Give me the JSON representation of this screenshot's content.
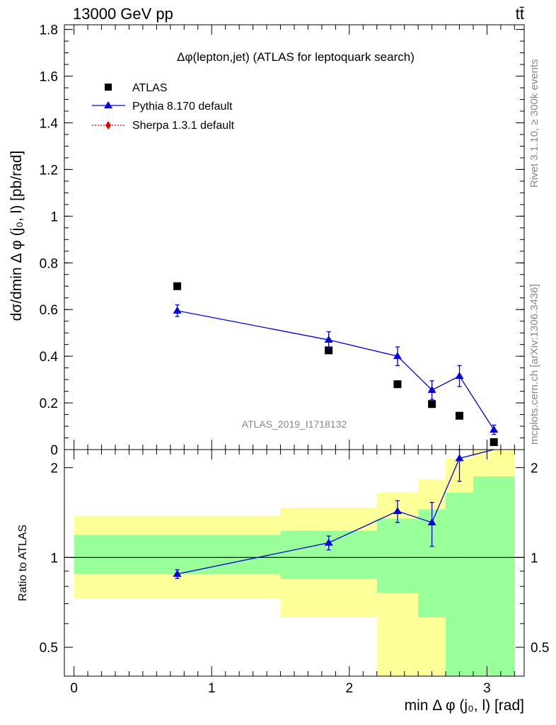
{
  "header": {
    "left": "13000 GeV pp",
    "right": "tt̄"
  },
  "side_labels": {
    "rivet": "Rivet 3.1.10, ≥ 300k events",
    "mcplots": "mcplots.cern.ch [arXiv:1306.3436]"
  },
  "analysis_tag": "ATLAS_2019_I1718132",
  "colors": {
    "atlas": "#000000",
    "pythia": "#0000dd",
    "sherpa": "#ee0000",
    "band_green": "#99ff99",
    "band_yellow": "#ffff99"
  },
  "chart_data": [
    {
      "type": "scatter",
      "panel": "main",
      "title": "Δφ(lepton,jet) (ATLAS for leptoquark search)",
      "ylabel": "dσ/dmin Δ φ (j₀, l) [pb/rad]",
      "xlim": [
        -0.07,
        3.27
      ],
      "ylim": [
        0,
        1.82
      ],
      "y_ticks": [
        "0",
        "0.2",
        "0.4",
        "0.6",
        "0.8",
        "1",
        "1.2",
        "1.4",
        "1.6",
        "1.8"
      ],
      "legend_position": "top-left",
      "series": [
        {
          "name": "ATLAS",
          "marker": "square",
          "x": [
            0.75,
            1.85,
            2.35,
            2.6,
            2.8,
            3.05
          ],
          "y": [
            0.7,
            0.425,
            0.28,
            0.195,
            0.145,
            0.032
          ]
        },
        {
          "name": "Pythia 8.170 default",
          "marker": "triangle",
          "x": [
            0.75,
            1.85,
            2.35,
            2.6,
            2.8,
            3.05
          ],
          "y": [
            0.595,
            0.47,
            0.4,
            0.255,
            0.315,
            0.085
          ],
          "err": [
            0.025,
            0.035,
            0.04,
            0.04,
            0.045,
            0.02
          ]
        },
        {
          "name": "Sherpa 1.3.1 default",
          "marker": "diamond",
          "x": [],
          "y": []
        }
      ]
    },
    {
      "type": "line",
      "panel": "ratio",
      "ylabel": "Ratio to ATLAS",
      "xlabel": "min Δ φ (j₀, l) [rad]",
      "xlim": [
        -0.07,
        3.27
      ],
      "ylim": [
        0.4,
        2.3
      ],
      "y_scale": "log",
      "y_ticks": [
        "0.5",
        "1",
        "2"
      ],
      "x_ticks": [
        "0",
        "1",
        "2",
        "3"
      ],
      "bands": {
        "edges": [
          0,
          1.5,
          2.2,
          2.5,
          2.7,
          2.9,
          3.2
        ],
        "green_low": [
          0.88,
          0.85,
          0.76,
          0.63,
          0.4,
          0.4
        ],
        "green_high": [
          1.19,
          1.23,
          1.35,
          1.45,
          1.65,
          1.87
        ],
        "yellow_low": [
          0.73,
          0.63,
          0.4,
          0.4,
          0.4,
          0.4
        ],
        "yellow_high": [
          1.38,
          1.47,
          1.65,
          1.83,
          2.15,
          2.3
        ]
      },
      "series": [
        {
          "name": "Pythia 8.170 default",
          "x": [
            0.75,
            1.85,
            2.35,
            2.6,
            2.8,
            3.05
          ],
          "y": [
            0.88,
            1.12,
            1.43,
            1.31,
            2.15,
            2.7
          ],
          "err": [
            0.03,
            0.06,
            0.12,
            0.22,
            0.35,
            0.5
          ]
        }
      ]
    }
  ]
}
